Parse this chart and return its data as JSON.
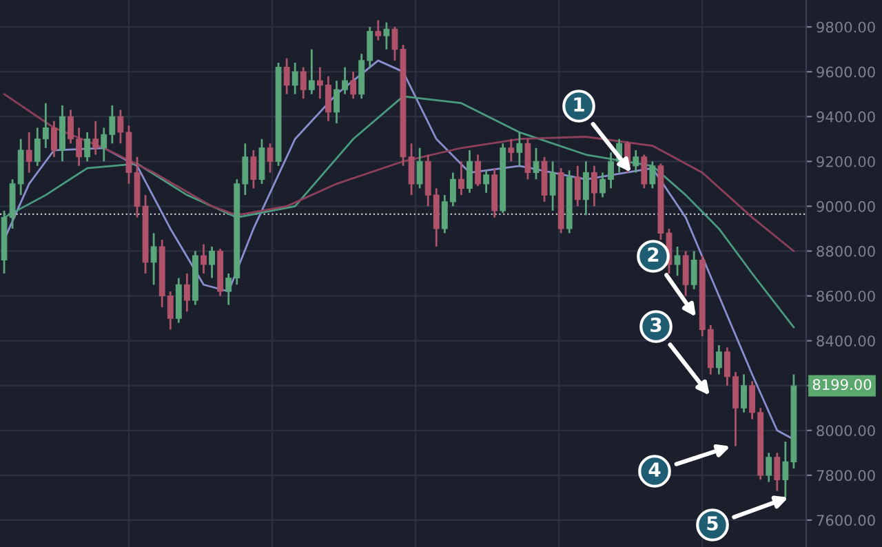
{
  "chart_data": {
    "type": "candlestick",
    "categories": [
      null,
      null,
      null,
      null,
      null,
      null,
      null,
      null,
      null,
      null,
      null,
      null,
      null,
      null,
      null,
      null,
      null,
      null,
      null,
      null,
      null,
      null,
      null,
      null,
      null,
      null,
      null,
      null,
      null,
      null,
      null,
      null,
      null,
      null,
      null,
      null,
      null,
      null,
      null,
      null,
      null,
      null,
      null,
      null,
      null,
      null,
      null,
      null,
      null,
      null,
      null,
      null,
      null,
      null,
      null,
      null,
      null,
      null,
      null,
      null,
      null,
      null,
      null,
      null,
      null,
      null,
      null,
      null,
      null,
      null,
      null,
      null,
      null,
      null,
      null,
      null,
      null,
      null,
      null,
      null,
      null,
      null,
      null,
      null,
      null,
      null,
      null,
      null,
      null,
      null,
      null,
      null,
      null,
      null,
      null,
      null
    ],
    "ohlc": [
      [
        8760,
        8980,
        8700,
        8950
      ],
      [
        8950,
        9120,
        8900,
        9100
      ],
      [
        9100,
        9300,
        9050,
        9250
      ],
      [
        9250,
        9330,
        9150,
        9200
      ],
      [
        9200,
        9350,
        9180,
        9300
      ],
      [
        9300,
        9460,
        9260,
        9350
      ],
      [
        9350,
        9380,
        9220,
        9250
      ],
      [
        9250,
        9450,
        9200,
        9400
      ],
      [
        9400,
        9430,
        9280,
        9300
      ],
      [
        9300,
        9350,
        9180,
        9220
      ],
      [
        9220,
        9330,
        9200,
        9300
      ],
      [
        9300,
        9380,
        9230,
        9260
      ],
      [
        9260,
        9350,
        9200,
        9320
      ],
      [
        9320,
        9450,
        9280,
        9400
      ],
      [
        9400,
        9430,
        9280,
        9330
      ],
      [
        9330,
        9360,
        9100,
        9150
      ],
      [
        9150,
        9220,
        8950,
        9000
      ],
      [
        9000,
        9050,
        8700,
        8750
      ],
      [
        8750,
        8880,
        8650,
        8820
      ],
      [
        8820,
        8850,
        8550,
        8600
      ],
      [
        8600,
        8620,
        8450,
        8500
      ],
      [
        8500,
        8680,
        8480,
        8650
      ],
      [
        8650,
        8700,
        8530,
        8580
      ],
      [
        8580,
        8800,
        8560,
        8780
      ],
      [
        8780,
        8830,
        8700,
        8740
      ],
      [
        8740,
        8820,
        8680,
        8800
      ],
      [
        8800,
        8810,
        8600,
        8620
      ],
      [
        8620,
        8700,
        8560,
        8680
      ],
      [
        8680,
        9120,
        8650,
        9100
      ],
      [
        9100,
        9280,
        9050,
        9220
      ],
      [
        9220,
        9250,
        9080,
        9120
      ],
      [
        9120,
        9300,
        9100,
        9260
      ],
      [
        9260,
        9280,
        9150,
        9200
      ],
      [
        9200,
        9640,
        9180,
        9620
      ],
      [
        9620,
        9660,
        9500,
        9540
      ],
      [
        9540,
        9640,
        9500,
        9600
      ],
      [
        9600,
        9620,
        9480,
        9520
      ],
      [
        9520,
        9700,
        9500,
        9560
      ],
      [
        9560,
        9620,
        9480,
        9540
      ],
      [
        9540,
        9580,
        9380,
        9420
      ],
      [
        9420,
        9560,
        9370,
        9520
      ],
      [
        9520,
        9620,
        9500,
        9560
      ],
      [
        9560,
        9600,
        9480,
        9500
      ],
      [
        9500,
        9680,
        9480,
        9650
      ],
      [
        9650,
        9800,
        9620,
        9780
      ],
      [
        9780,
        9830,
        9740,
        9760
      ],
      [
        9760,
        9820,
        9700,
        9790
      ],
      [
        9790,
        9800,
        9650,
        9700
      ],
      [
        9700,
        9720,
        9180,
        9220
      ],
      [
        9220,
        9280,
        9050,
        9100
      ],
      [
        9100,
        9260,
        9080,
        9200
      ],
      [
        9200,
        9230,
        9000,
        9050
      ],
      [
        9050,
        9080,
        8820,
        8900
      ],
      [
        8900,
        9050,
        8880,
        9020
      ],
      [
        9020,
        9150,
        9000,
        9120
      ],
      [
        9120,
        9200,
        9050,
        9080
      ],
      [
        9080,
        9250,
        9060,
        9200
      ],
      [
        9200,
        9230,
        9090,
        9100
      ],
      [
        9100,
        9160,
        9060,
        9140
      ],
      [
        9140,
        9170,
        8950,
        8980
      ],
      [
        8980,
        9280,
        8970,
        9260
      ],
      [
        9260,
        9300,
        9200,
        9240
      ],
      [
        9240,
        9330,
        9180,
        9280
      ],
      [
        9280,
        9300,
        9120,
        9150
      ],
      [
        9150,
        9260,
        9120,
        9200
      ],
      [
        9200,
        9220,
        9020,
        9050
      ],
      [
        9050,
        9200,
        8980,
        9150
      ],
      [
        9150,
        9170,
        8880,
        8900
      ],
      [
        8900,
        9160,
        8880,
        9130
      ],
      [
        9130,
        9180,
        9000,
        9030
      ],
      [
        9030,
        9200,
        8960,
        9150
      ],
      [
        9150,
        9180,
        9000,
        9060
      ],
      [
        9060,
        9150,
        9040,
        9120
      ],
      [
        9120,
        9240,
        9080,
        9200
      ],
      [
        9200,
        9300,
        9150,
        9280
      ],
      [
        9280,
        9290,
        9150,
        9180
      ],
      [
        9180,
        9250,
        9150,
        9220
      ],
      [
        9220,
        9230,
        9080,
        9100
      ],
      [
        9100,
        9200,
        9080,
        9180
      ],
      [
        9180,
        9190,
        8850,
        8880
      ],
      [
        8880,
        8900,
        8700,
        8740
      ],
      [
        8740,
        8820,
        8690,
        8780
      ],
      [
        8780,
        8800,
        8600,
        8650
      ],
      [
        8650,
        8800,
        8630,
        8760
      ],
      [
        8760,
        8780,
        8420,
        8450
      ],
      [
        8450,
        8470,
        8250,
        8280
      ],
      [
        8280,
        8380,
        8250,
        8350
      ],
      [
        8350,
        8370,
        8200,
        8240
      ],
      [
        8240,
        8260,
        7930,
        8100
      ],
      [
        8100,
        8250,
        8080,
        8200
      ],
      [
        8200,
        8220,
        8050,
        8080
      ],
      [
        8080,
        8100,
        7780,
        7800
      ],
      [
        7800,
        7900,
        7770,
        7880
      ],
      [
        7880,
        7900,
        7730,
        7780
      ],
      [
        7780,
        7950,
        7700,
        7860
      ],
      [
        7860,
        8250,
        7830,
        8199
      ]
    ],
    "colors": [
      "#5ba67b",
      "#5ba67b",
      "#5ba67b",
      "#b0536a",
      "#5ba67b",
      "#5ba67b",
      "#b0536a",
      "#5ba67b",
      "#b0536a",
      "#b0536a",
      "#5ba67b",
      "#b0536a",
      "#5ba67b",
      "#5ba67b",
      "#b0536a",
      "#b0536a",
      "#b0536a",
      "#b0536a",
      "#5ba67b",
      "#b0536a",
      "#b0536a",
      "#5ba67b",
      "#b0536a",
      "#5ba67b",
      "#b0536a",
      "#5ba67b",
      "#b0536a",
      "#5ba67b",
      "#5ba67b",
      "#5ba67b",
      "#b0536a",
      "#5ba67b",
      "#b0536a",
      "#5ba67b",
      "#b0536a",
      "#5ba67b",
      "#b0536a",
      "#5ba67b",
      "#b0536a",
      "#b0536a",
      "#5ba67b",
      "#5ba67b",
      "#b0536a",
      "#5ba67b",
      "#5ba67b",
      "#b0536a",
      "#5ba67b",
      "#b0536a",
      "#b0536a",
      "#b0536a",
      "#5ba67b",
      "#b0536a",
      "#b0536a",
      "#5ba67b",
      "#5ba67b",
      "#b0536a",
      "#5ba67b",
      "#b0536a",
      "#5ba67b",
      "#b0536a",
      "#5ba67b",
      "#b0536a",
      "#5ba67b",
      "#b0536a",
      "#5ba67b",
      "#b0536a",
      "#5ba67b",
      "#b0536a",
      "#5ba67b",
      "#b0536a",
      "#5ba67b",
      "#b0536a",
      "#5ba67b",
      "#5ba67b",
      "#5ba67b",
      "#b0536a",
      "#5ba67b",
      "#b0536a",
      "#5ba67b",
      "#b0536a",
      "#b0536a",
      "#5ba67b",
      "#b0536a",
      "#5ba67b",
      "#b0536a",
      "#b0536a",
      "#5ba67b",
      "#b0536a",
      "#b0536a",
      "#5ba67b",
      "#b0536a",
      "#b0536a",
      "#5ba67b",
      "#b0536a",
      "#5ba67b",
      "#5ba67b"
    ],
    "series": [
      {
        "type": "line",
        "color": "#8a8fd0",
        "values": [
          8850,
          null,
          null,
          9100,
          null,
          null,
          9250,
          null,
          null,
          null,
          null,
          null,
          9260,
          null,
          null,
          null,
          9180,
          null,
          null,
          null,
          8900,
          null,
          null,
          null,
          8650,
          null,
          null,
          8620,
          null,
          null,
          8900,
          null,
          null,
          null,
          null,
          9300,
          null,
          null,
          null,
          null,
          9500,
          null,
          null,
          null,
          null,
          9650,
          null,
          null,
          9600,
          null,
          null,
          null,
          9300,
          null,
          null,
          null,
          9150,
          null,
          null,
          null,
          null,
          null,
          9180,
          null,
          null,
          null,
          null,
          null,
          null,
          null,
          9120,
          null,
          null,
          null,
          null,
          null,
          null,
          null,
          9170,
          null,
          null,
          null,
          8950,
          null,
          null,
          null,
          8600,
          null,
          null,
          null,
          8250,
          null,
          null,
          8000,
          null,
          7960
        ]
      },
      {
        "type": "line",
        "color": "#4a9b80",
        "values": [
          8950,
          null,
          null,
          null,
          null,
          9050,
          null,
          null,
          null,
          null,
          9170,
          null,
          null,
          null,
          null,
          null,
          9190,
          null,
          null,
          null,
          null,
          null,
          9050,
          null,
          null,
          null,
          null,
          null,
          8950,
          null,
          null,
          null,
          null,
          null,
          null,
          9000,
          null,
          null,
          null,
          null,
          null,
          null,
          9300,
          null,
          null,
          null,
          null,
          null,
          9490,
          null,
          null,
          null,
          null,
          null,
          null,
          9460,
          null,
          null,
          null,
          null,
          null,
          null,
          9330,
          null,
          null,
          null,
          null,
          null,
          null,
          null,
          9230,
          null,
          null,
          null,
          null,
          null,
          null,
          null,
          9180,
          null,
          null,
          null,
          9050,
          null,
          null,
          null,
          8900,
          null,
          null,
          null,
          8700,
          null,
          null,
          null,
          null,
          8460
        ]
      },
      {
        "type": "line",
        "color": "#8e3f5a",
        "values": [
          9500,
          null,
          null,
          null,
          null,
          null,
          9350,
          null,
          null,
          null,
          null,
          null,
          9260,
          null,
          null,
          null,
          null,
          null,
          9150,
          null,
          null,
          null,
          null,
          null,
          null,
          9000,
          null,
          null,
          8960,
          null,
          null,
          null,
          null,
          null,
          9000,
          null,
          null,
          null,
          null,
          null,
          9100,
          null,
          null,
          null,
          null,
          null,
          null,
          null,
          9200,
          null,
          null,
          null,
          null,
          null,
          null,
          9260,
          null,
          null,
          null,
          null,
          null,
          null,
          9300,
          null,
          null,
          null,
          null,
          null,
          null,
          null,
          9310,
          null,
          null,
          null,
          null,
          null,
          null,
          null,
          9270,
          null,
          null,
          null,
          null,
          null,
          9150,
          null,
          null,
          null,
          null,
          null,
          8950,
          null,
          null,
          null,
          null,
          8800
        ]
      }
    ],
    "ylim": [
      7480,
      9920
    ],
    "yticks": [
      {
        "value": 7600,
        "label": "7600.00"
      },
      {
        "value": 7800,
        "label": "7800.00"
      },
      {
        "value": 8000,
        "label": "8000.00"
      },
      {
        "value": 8200,
        "label": null
      },
      {
        "value": 8400,
        "label": "8400.00"
      },
      {
        "value": 8600,
        "label": "8600.00"
      },
      {
        "value": 8800,
        "label": "8800.00"
      },
      {
        "value": 9000,
        "label": "9000.00"
      },
      {
        "value": 9200,
        "label": "9200.00"
      },
      {
        "value": 9400,
        "label": "9400.00"
      },
      {
        "value": 9600,
        "label": "9600.00"
      },
      {
        "value": 9800,
        "label": "9800.00"
      }
    ],
    "ref_lines": [
      {
        "axis": "y",
        "value": 8965,
        "color": "#c8c8c8",
        "line_style": "dotted"
      }
    ],
    "annotations": [
      "1",
      "2",
      "3",
      "4",
      "5",
      "8199.00"
    ],
    "grid": true,
    "legend": false,
    "tick_labels": "y"
  }
}
